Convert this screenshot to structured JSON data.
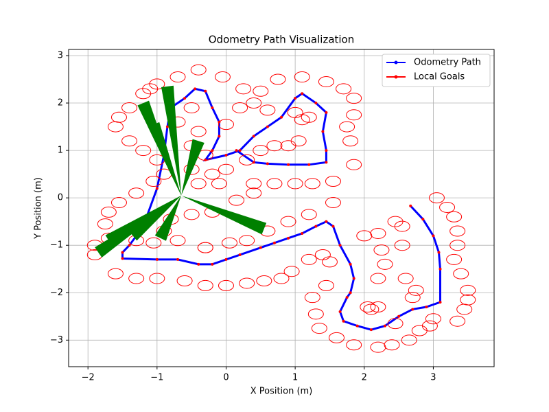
{
  "chart_data": {
    "type": "line",
    "title": "Odometry Path Visualization",
    "xlabel": "X Position (m)",
    "ylabel": "Y Position (m)",
    "xlim": [
      -2.28,
      3.88
    ],
    "ylim": [
      -3.56,
      3.13
    ],
    "xticks": [
      {
        "value": -2,
        "label": "−2"
      },
      {
        "value": -1,
        "label": "−1"
      },
      0,
      1,
      2,
      3
    ],
    "yticks": [
      {
        "value": -3,
        "label": "−3"
      },
      {
        "value": -2,
        "label": "−2"
      },
      {
        "value": -1,
        "label": "−1"
      },
      0,
      1,
      2,
      3
    ],
    "grid": true,
    "legend": "upper right",
    "series": [
      {
        "name": "Odometry Path",
        "color": "#0000ff",
        "marker": "dot",
        "x": [
          2.67,
          2.85,
          3.0,
          3.08,
          3.1,
          3.1,
          2.9,
          2.7,
          2.5,
          2.3,
          2.1,
          1.9,
          1.7,
          1.65,
          1.75,
          1.8,
          1.85,
          1.8,
          1.65,
          1.55,
          1.45,
          1.3,
          1.1,
          0.9,
          0.7,
          0.5,
          0.2,
          0.0,
          -0.2,
          -0.4,
          -0.7,
          -1.0,
          -1.5,
          -1.5,
          -1.4,
          -1.2,
          -1.0,
          -0.9,
          -0.85,
          -0.8,
          -0.6,
          -0.45,
          -0.3,
          -0.2,
          -0.1,
          -0.1,
          -0.2,
          -0.3,
          0.0,
          0.2,
          0.4,
          0.6,
          0.8,
          1.0,
          1.1,
          1.3,
          1.45,
          1.4,
          1.45,
          1.45,
          1.2,
          0.9,
          0.6,
          0.4,
          0.15
        ],
        "y": [
          -0.17,
          -0.45,
          -0.8,
          -1.15,
          -1.5,
          -2.2,
          -2.3,
          -2.35,
          -2.5,
          -2.7,
          -2.78,
          -2.7,
          -2.6,
          -2.4,
          -2.1,
          -2.0,
          -1.7,
          -1.4,
          -1.0,
          -0.6,
          -0.5,
          -0.6,
          -0.75,
          -0.85,
          -0.95,
          -1.05,
          -1.2,
          -1.3,
          -1.4,
          -1.4,
          -1.3,
          -1.3,
          -1.28,
          -1.15,
          -1.0,
          -0.6,
          0.2,
          0.9,
          1.5,
          1.9,
          2.1,
          2.3,
          2.25,
          1.9,
          1.6,
          1.3,
          1.0,
          0.8,
          0.9,
          1.0,
          1.3,
          1.5,
          1.7,
          2.1,
          2.2,
          2.0,
          1.8,
          1.4,
          1.0,
          0.75,
          0.7,
          0.7,
          0.72,
          0.75,
          1.0
        ]
      },
      {
        "name": "Local Goals",
        "color": "#ff0000",
        "marker": "ellipse",
        "x": [
          -1.2,
          -1.1,
          -1.0,
          -0.7,
          -0.4,
          -0.05,
          0.25,
          0.5,
          0.75,
          1.1,
          1.45,
          1.7,
          1.85,
          1.85,
          1.75,
          1.8,
          1.85,
          1.55,
          1.55,
          1.2,
          0.9,
          0.6,
          0.3,
          0.05,
          -0.3,
          -0.7,
          -1.05,
          -1.3,
          -1.7,
          -1.9,
          -1.9,
          -1.6,
          -1.3,
          -1.0,
          -0.6,
          -0.3,
          0.0,
          0.3,
          0.55,
          0.8,
          0.95,
          1.2,
          1.4,
          1.5,
          1.45,
          1.25,
          1.3,
          1.35,
          1.6,
          1.85,
          2.2,
          2.4,
          2.65,
          2.8,
          2.95,
          3.0,
          2.7,
          2.75,
          2.6,
          2.55,
          2.55,
          2.45,
          2.2,
          2.0,
          2.25,
          2.3,
          2.2,
          2.1,
          2.2,
          2.05,
          2.45,
          3.05,
          3.2,
          3.3,
          3.35,
          3.35,
          3.3,
          3.4,
          3.5,
          3.5,
          3.45,
          3.35,
          -0.5,
          -0.7,
          -0.4,
          -0.5,
          -0.3,
          -0.5,
          -0.2,
          0.0,
          0.3,
          0.5,
          0.7,
          0.9,
          1.05,
          1.1,
          1.2,
          1.0,
          0.6,
          0.4,
          0.2,
          0.0,
          0.4,
          0.7,
          1.0,
          1.25,
          -1.6,
          -1.55,
          -1.4,
          -1.4,
          -1.2,
          -1.0,
          -0.9,
          -1.05,
          -1.3,
          -1.55,
          -1.7,
          -1.75,
          -0.4,
          -0.1,
          -0.2,
          -0.5,
          -0.8,
          -0.9,
          -0.3,
          0.15,
          0.4
        ],
        "y": [
          2.2,
          2.3,
          2.4,
          2.55,
          2.7,
          2.55,
          2.3,
          2.25,
          2.5,
          2.55,
          2.45,
          2.3,
          2.1,
          1.75,
          1.5,
          1.2,
          0.7,
          0.35,
          -0.1,
          -0.35,
          -0.5,
          -0.7,
          -0.9,
          -0.95,
          -1.05,
          -0.9,
          -0.95,
          -0.9,
          -0.85,
          -1.0,
          -1.2,
          -1.6,
          -1.7,
          -1.7,
          -1.75,
          -1.85,
          -1.85,
          -1.8,
          -1.75,
          -1.7,
          -1.55,
          -1.3,
          -1.2,
          -1.35,
          -1.85,
          -2.1,
          -2.45,
          -2.75,
          -2.95,
          -3.1,
          -3.15,
          -3.1,
          -3.0,
          -2.8,
          -2.7,
          -2.55,
          -2.1,
          -1.95,
          -1.7,
          -1.0,
          -0.6,
          -0.5,
          -0.75,
          -0.8,
          -1.1,
          -1.4,
          -1.7,
          -2.35,
          -2.3,
          -2.3,
          -2.65,
          0.0,
          -0.2,
          -0.4,
          -0.7,
          -1.0,
          -1.3,
          -1.6,
          -1.95,
          -2.15,
          -2.35,
          -2.6,
          1.9,
          1.6,
          1.4,
          1.1,
          0.9,
          0.6,
          0.5,
          0.6,
          0.8,
          1.0,
          1.1,
          1.1,
          1.2,
          1.65,
          1.7,
          1.8,
          1.85,
          2.0,
          1.9,
          1.55,
          0.3,
          0.3,
          0.3,
          0.3,
          1.5,
          1.7,
          1.9,
          1.2,
          1.0,
          0.8,
          0.5,
          0.35,
          0.1,
          -0.1,
          -0.3,
          -0.55,
          0.3,
          0.3,
          -0.3,
          -0.35,
          -0.45,
          -0.7,
          -1.05,
          -0.05,
          0.1
        ]
      }
    ],
    "arrows": {
      "color": "#008000",
      "x0": [
        -0.65,
        -0.65,
        -0.65,
        -0.65,
        -0.65,
        -0.65,
        -0.65,
        -0.65,
        -0.65
      ],
      "y0": [
        0.05,
        0.05,
        0.05,
        0.05,
        0.05,
        0.05,
        0.05,
        0.05,
        0.05
      ],
      "x1": [
        -1.2,
        -0.85,
        -1.05,
        -0.4,
        0.55,
        -1.85,
        -1.35,
        -0.95,
        -1.7
      ],
      "y1": [
        2.0,
        2.35,
        1.55,
        1.2,
        -0.65,
        -1.15,
        -0.8,
        -0.85,
        -0.9
      ]
    }
  }
}
